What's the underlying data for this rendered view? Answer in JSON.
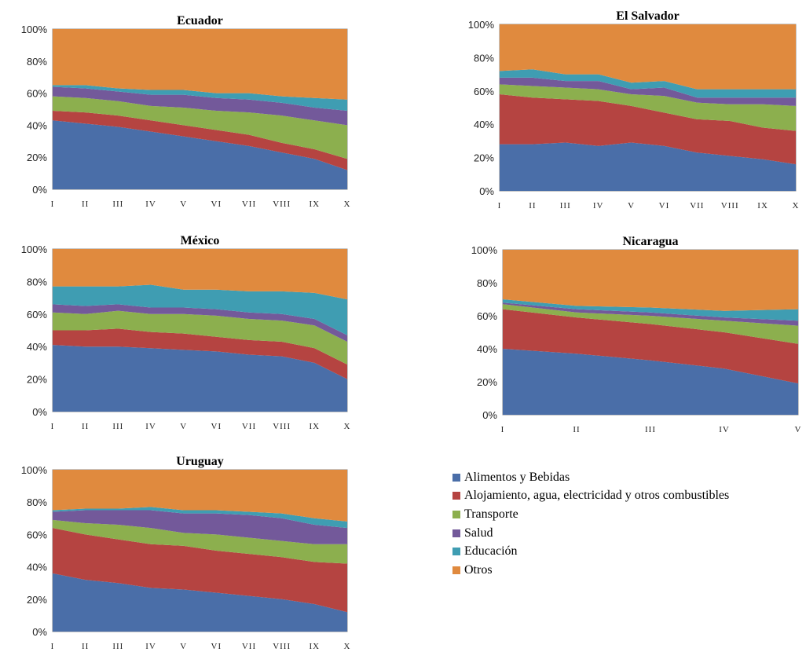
{
  "chart_data": [
    {
      "type": "area",
      "stacked": "percent",
      "title": "Ecuador",
      "ylim": [
        0,
        100
      ],
      "yticks": [
        "0%",
        "20%",
        "40%",
        "60%",
        "80%",
        "100%"
      ],
      "categories": [
        "I",
        "II",
        "III",
        "IV",
        "V",
        "VI",
        "VII",
        "VIII",
        "IX",
        "X"
      ],
      "series": [
        {
          "name": "Alimentos y Bebidas",
          "values": [
            43,
            41,
            39,
            36,
            33,
            30,
            27,
            23,
            19,
            12
          ]
        },
        {
          "name": "Alojamiento, agua, electricidad y otros combustibles",
          "values": [
            6,
            7,
            7,
            7,
            7,
            7,
            7,
            6,
            6,
            7
          ]
        },
        {
          "name": "Transporte",
          "values": [
            9,
            9,
            9,
            9,
            11,
            12,
            14,
            17,
            18,
            21
          ]
        },
        {
          "name": "Salud",
          "values": [
            6,
            6,
            6,
            7,
            8,
            8,
            8,
            8,
            8,
            9
          ]
        },
        {
          "name": "Educación",
          "values": [
            1,
            2,
            2,
            3,
            3,
            3,
            4,
            4,
            6,
            7
          ]
        },
        {
          "name": "Otros",
          "values": [
            35,
            35,
            37,
            38,
            38,
            40,
            40,
            42,
            43,
            44
          ]
        }
      ]
    },
    {
      "type": "area",
      "stacked": "percent",
      "title": "El Salvador",
      "ylim": [
        0,
        100
      ],
      "yticks": [
        "0%",
        "20%",
        "40%",
        "60%",
        "80%",
        "100%"
      ],
      "categories": [
        "I",
        "II",
        "III",
        "IV",
        "V",
        "VI",
        "VII",
        "VIII",
        "IX",
        "X"
      ],
      "series": [
        {
          "name": "Alimentos y Bebidas",
          "values": [
            28,
            28,
            29,
            27,
            29,
            27,
            23,
            21,
            19,
            16
          ]
        },
        {
          "name": "Alojamiento, agua, electricidad y otros combustibles",
          "values": [
            30,
            28,
            26,
            27,
            22,
            20,
            20,
            21,
            19,
            20
          ]
        },
        {
          "name": "Transporte",
          "values": [
            6,
            7,
            7,
            7,
            7,
            10,
            10,
            10,
            14,
            15
          ]
        },
        {
          "name": "Salud",
          "values": [
            4,
            5,
            4,
            5,
            3,
            5,
            3,
            4,
            4,
            5
          ]
        },
        {
          "name": "Educación",
          "values": [
            4,
            5,
            4,
            4,
            4,
            4,
            5,
            5,
            5,
            5
          ]
        },
        {
          "name": "Otros",
          "values": [
            28,
            27,
            30,
            30,
            35,
            34,
            39,
            39,
            39,
            39
          ]
        }
      ]
    },
    {
      "type": "area",
      "stacked": "percent",
      "title": "México",
      "ylim": [
        0,
        100
      ],
      "yticks": [
        "0%",
        "20%",
        "40%",
        "60%",
        "80%",
        "100%"
      ],
      "categories": [
        "I",
        "II",
        "III",
        "IV",
        "V",
        "VI",
        "VII",
        "VIII",
        "IX",
        "X"
      ],
      "series": [
        {
          "name": "Alimentos y Bebidas",
          "values": [
            41,
            40,
            40,
            39,
            38,
            37,
            35,
            34,
            30,
            20
          ]
        },
        {
          "name": "Alojamiento, agua, electricidad y otros combustibles",
          "values": [
            9,
            10,
            11,
            10,
            10,
            9,
            9,
            9,
            9,
            9
          ]
        },
        {
          "name": "Transporte",
          "values": [
            11,
            10,
            11,
            11,
            12,
            13,
            13,
            13,
            14,
            14
          ]
        },
        {
          "name": "Salud",
          "values": [
            5,
            5,
            4,
            4,
            4,
            4,
            4,
            4,
            4,
            4
          ]
        },
        {
          "name": "Educación",
          "values": [
            11,
            12,
            11,
            14,
            11,
            12,
            13,
            14,
            16,
            22
          ]
        },
        {
          "name": "Otros",
          "values": [
            23,
            23,
            23,
            22,
            25,
            25,
            26,
            26,
            27,
            31
          ]
        }
      ]
    },
    {
      "type": "area",
      "stacked": "percent",
      "title": "Nicaragua",
      "ylim": [
        0,
        100
      ],
      "yticks": [
        "0%",
        "20%",
        "40%",
        "60%",
        "80%",
        "100%"
      ],
      "categories": [
        "I",
        "II",
        "III",
        "IV",
        "V"
      ],
      "series": [
        {
          "name": "Alimentos y Bebidas",
          "values": [
            40,
            37,
            33,
            28,
            19
          ]
        },
        {
          "name": "Alojamiento, agua, electricidad y otros combustibles",
          "values": [
            24,
            22,
            22,
            22,
            24
          ]
        },
        {
          "name": "Transporte",
          "values": [
            3,
            3,
            5,
            7,
            11
          ]
        },
        {
          "name": "Salud",
          "values": [
            1,
            2,
            2,
            2,
            3
          ]
        },
        {
          "name": "Educación",
          "values": [
            2,
            2,
            3,
            4,
            7
          ]
        },
        {
          "name": "Otros",
          "values": [
            30,
            34,
            35,
            37,
            36
          ]
        }
      ]
    },
    {
      "type": "area",
      "stacked": "percent",
      "title": "Uruguay",
      "ylim": [
        0,
        100
      ],
      "yticks": [
        "0%",
        "20%",
        "40%",
        "60%",
        "80%",
        "100%"
      ],
      "categories": [
        "I",
        "II",
        "III",
        "IV",
        "V",
        "VI",
        "VII",
        "VIII",
        "IX",
        "X"
      ],
      "series": [
        {
          "name": "Alimentos y Bebidas",
          "values": [
            36,
            32,
            30,
            27,
            26,
            24,
            22,
            20,
            17,
            12
          ]
        },
        {
          "name": "Alojamiento, agua, electricidad y otros combustibles",
          "values": [
            28,
            28,
            27,
            27,
            27,
            26,
            26,
            26,
            26,
            30
          ]
        },
        {
          "name": "Transporte",
          "values": [
            5,
            7,
            9,
            10,
            8,
            10,
            10,
            10,
            11,
            12
          ]
        },
        {
          "name": "Salud",
          "values": [
            5,
            8,
            9,
            11,
            12,
            13,
            14,
            14,
            12,
            10
          ]
        },
        {
          "name": "Educación",
          "values": [
            1,
            1,
            1,
            2,
            2,
            2,
            2,
            3,
            4,
            4
          ]
        },
        {
          "name": "Otros",
          "values": [
            25,
            24,
            24,
            23,
            25,
            25,
            26,
            27,
            30,
            32
          ]
        }
      ]
    }
  ],
  "legend": [
    {
      "label": "Alimentos y Bebidas",
      "color": "#4A6EA8"
    },
    {
      "label": "Alojamiento, agua, electricidad y otros combustibles",
      "color": "#B54441"
    },
    {
      "label": "Transporte",
      "color": "#8CAF4E"
    },
    {
      "label": "Salud",
      "color": "#73599A"
    },
    {
      "label": "Educación",
      "color": "#3F9DB2"
    },
    {
      "label": "Otros",
      "color": "#E08A3E"
    }
  ]
}
